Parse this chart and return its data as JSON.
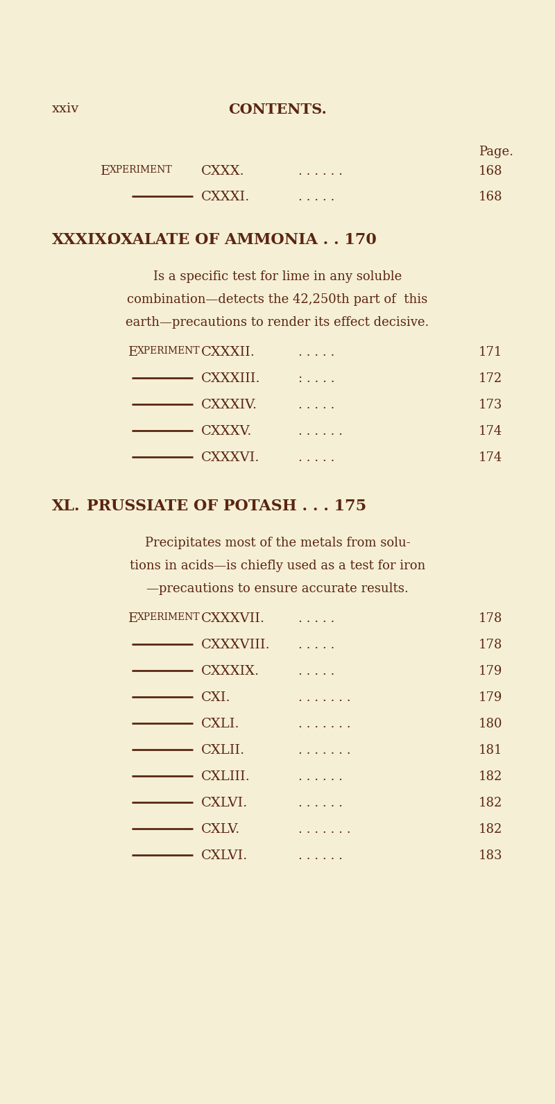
{
  "bg_color": "#f5efd6",
  "text_color": "#5a2510",
  "page_width": 8.0,
  "page_height": 15.92,
  "dpi": 100,
  "header_left": "xxiv",
  "header_center": "CONTENTS.",
  "page_label": "Page.",
  "section1": [
    {
      "type": "experiment",
      "roman": "CXXX.",
      "dots": ". . . . . .",
      "page": "168"
    },
    {
      "type": "dash",
      "roman": "CXXXI.",
      "dots": ". . . . .",
      "page": "168"
    }
  ],
  "section2_title_num": "XXXIX.",
  "section2_title_text": "OXALATE OF AMMONIA . . 170",
  "section2_body": [
    "Is a specific test for lime in any soluble",
    "combination—detects the 42,250th part of  this",
    "earth—precautions to render its effect decisive."
  ],
  "section2": [
    {
      "type": "experiment",
      "roman": "CXXXII.",
      "dots": ". . . . .",
      "page": "171"
    },
    {
      "type": "dash",
      "roman": "CXXXIII.",
      "dots": ": . . . .",
      "page": "172"
    },
    {
      "type": "dash",
      "roman": "CXXXIV.",
      "dots": ". . . . .",
      "page": "173"
    },
    {
      "type": "dash",
      "roman": "CXXXV.",
      "dots": ". . . . . .",
      "page": "174"
    },
    {
      "type": "dash",
      "roman": "CXXXVI.",
      "dots": ". . . . .",
      "page": "174"
    }
  ],
  "section3_title_num": "XL.",
  "section3_title_text": "PRUSSIATE OF POTASH . . . 175",
  "section3_body": [
    "Precipitates most of the metals from solu-",
    "tions in acids—is chiefly used as a test for iron",
    "—precautions to ensure accurate results."
  ],
  "section3": [
    {
      "type": "experiment",
      "roman": "CXXXVII.",
      "dots": ". . . . .",
      "page": "178"
    },
    {
      "type": "dash",
      "roman": "CXXXVIII.",
      "dots": ". . . . .",
      "page": "178"
    },
    {
      "type": "dash",
      "roman": "CXXXIX.",
      "dots": ". . . . .",
      "page": "179"
    },
    {
      "type": "dash",
      "roman": "CXI.",
      "dots": ". . . . . . .",
      "page": "179"
    },
    {
      "type": "dash",
      "roman": "CXLI.",
      "dots": ". . . . . . .",
      "page": "180"
    },
    {
      "type": "dash",
      "roman": "CXLII.",
      "dots": ". . . . . . .",
      "page": "181"
    },
    {
      "type": "dash",
      "roman": "CXLIII.",
      "dots": ". . . . . .",
      "page": "182"
    },
    {
      "type": "dash",
      "roman": "CXLVI.",
      "dots": ". . . . . .",
      "page": "182"
    },
    {
      "type": "dash",
      "roman": "CXLV.",
      "dots": ". . . . . . .",
      "page": "182"
    },
    {
      "type": "dash",
      "roman": "CXLVI.",
      "dots": ". . . . . .",
      "page": "183"
    }
  ]
}
